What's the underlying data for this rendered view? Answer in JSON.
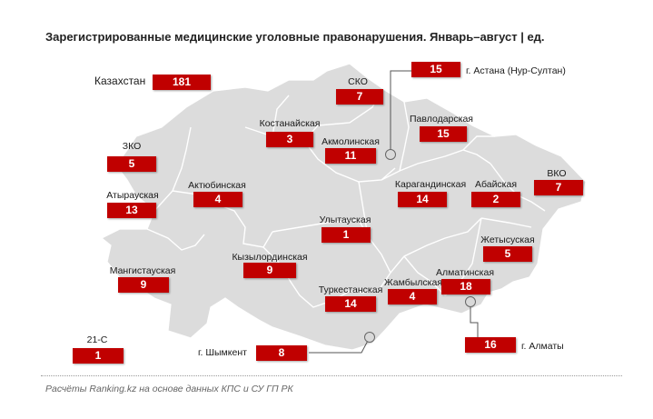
{
  "title": "Зарегистрированные медицинские уголовные правонарушения. Январь–август | ед.",
  "footer": "Расчёты Ranking.kz на основе данных КПС и СУ ГП РК",
  "colors": {
    "badge": "#c00000",
    "map_fill": "#dcdcdc",
    "border": "#ffffff"
  },
  "regions": {
    "kazakhstan": {
      "name": "Казахстан",
      "value": "181"
    },
    "sko": {
      "name": "СКО",
      "value": "7"
    },
    "astana": {
      "name": "г. Астана (Нур-Султан)",
      "value": "15"
    },
    "kostanay": {
      "name": "Костанайская",
      "value": "3"
    },
    "akmola": {
      "name": "Акмолинская",
      "value": "11"
    },
    "pavlodar": {
      "name": "Павлодарская",
      "value": "15"
    },
    "zko": {
      "name": "ЗКО",
      "value": "5"
    },
    "aktobe": {
      "name": "Актюбинская",
      "value": "4"
    },
    "karaganda": {
      "name": "Карагандинская",
      "value": "14"
    },
    "abay": {
      "name": "Абайская",
      "value": "2"
    },
    "vko": {
      "name": "ВКО",
      "value": "7"
    },
    "atyrau": {
      "name": "Атырауская",
      "value": "13"
    },
    "ulytau": {
      "name": "Улытауская",
      "value": "1"
    },
    "zhetysu": {
      "name": "Жетысуская",
      "value": "5"
    },
    "kyzylorda": {
      "name": "Кызылординская",
      "value": "9"
    },
    "mangystau": {
      "name": "Мангистауская",
      "value": "9"
    },
    "almaty_reg": {
      "name": "Алматинская",
      "value": "18"
    },
    "zhambyl": {
      "name": "Жамбылская",
      "value": "4"
    },
    "turkestan": {
      "name": "Туркестанская",
      "value": "14"
    },
    "almaty_city": {
      "name": "г. Алматы",
      "value": "16"
    },
    "shymkent": {
      "name": "г. Шымкент",
      "value": "8"
    },
    "s21": {
      "name": "21-С",
      "value": "1"
    }
  }
}
